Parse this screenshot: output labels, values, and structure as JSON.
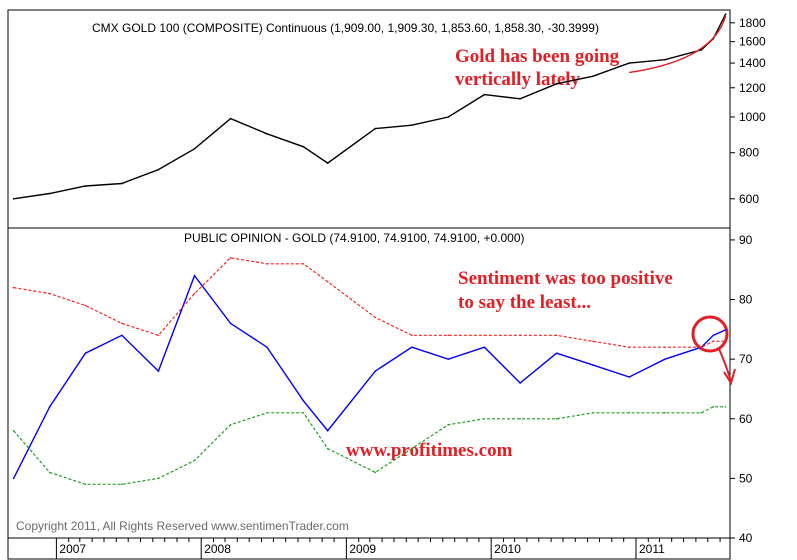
{
  "chart_data": [
    {
      "type": "line",
      "title": "CMX GOLD 100 (COMPOSITE) Continuous (1,909.00, 1,909.30, 1,853.60, 1,858.30, -30.3999)",
      "ylim": [
        500,
        1950
      ],
      "yscale": "log",
      "yticks": [
        600,
        800,
        1000,
        1200,
        1400,
        1600,
        1800
      ],
      "x": [
        "2006-09",
        "2006-12",
        "2007-03",
        "2007-06",
        "2007-09",
        "2007-12",
        "2008-03",
        "2008-06",
        "2008-09",
        "2008-11",
        "2009-03",
        "2009-06",
        "2009-09",
        "2009-12",
        "2010-03",
        "2010-06",
        "2010-09",
        "2010-12",
        "2011-03",
        "2011-06",
        "2011-07",
        "2011-08"
      ],
      "series": [
        {
          "values": [
            600,
            620,
            650,
            660,
            720,
            820,
            990,
            900,
            830,
            750,
            930,
            950,
            1000,
            1150,
            1120,
            1230,
            1290,
            1400,
            1430,
            1520,
            1630,
            1900
          ],
          "color": "#000000"
        }
      ],
      "annotation": {
        "text": [
          "Gold has been going",
          "vertically lately"
        ],
        "color": "#e31e24"
      }
    },
    {
      "type": "line",
      "title": "PUBLIC OPINION - GOLD (74.9100, 74.9100, 74.9100, +0.000)",
      "ylim": [
        40,
        92
      ],
      "yticks": [
        40,
        50,
        60,
        70,
        80,
        90
      ],
      "x": [
        "2006-09",
        "2006-12",
        "2007-03",
        "2007-06",
        "2007-09",
        "2007-12",
        "2008-03",
        "2008-06",
        "2008-09",
        "2008-11",
        "2009-03",
        "2009-06",
        "2009-09",
        "2009-12",
        "2010-03",
        "2010-06",
        "2010-09",
        "2010-12",
        "2011-03",
        "2011-06",
        "2011-07",
        "2011-08"
      ],
      "series": [
        {
          "values": [
            50,
            62,
            71,
            74,
            68,
            84,
            76,
            72,
            63,
            58,
            68,
            72,
            70,
            72,
            66,
            71,
            69,
            67,
            70,
            72,
            74,
            74.9
          ],
          "color": "#0000ff"
        },
        {
          "values": [
            82,
            81,
            79,
            76,
            74,
            81,
            87,
            86,
            86,
            83,
            77,
            74,
            74,
            74,
            74,
            74,
            73,
            72,
            72,
            72,
            73,
            73
          ],
          "color": "#ff2020",
          "style": "dotted"
        },
        {
          "values": [
            58,
            51,
            49,
            49,
            50,
            53,
            59,
            61,
            61,
            55,
            51,
            55,
            59,
            60,
            60,
            60,
            61,
            61,
            61,
            61,
            62,
            62
          ],
          "color": "#20a020",
          "style": "dotted"
        }
      ],
      "annotation": {
        "text": [
          "Sentiment was too positive",
          "to say the least..."
        ],
        "color": "#e31e24"
      }
    }
  ],
  "x_axis_labels": [
    "2007",
    "2008",
    "2009",
    "2010",
    "2011"
  ],
  "watermark_url": "www.profitimes.com",
  "copyright": "Copyright 2011, All Rights Reserved  www.sentimenTrader.com"
}
